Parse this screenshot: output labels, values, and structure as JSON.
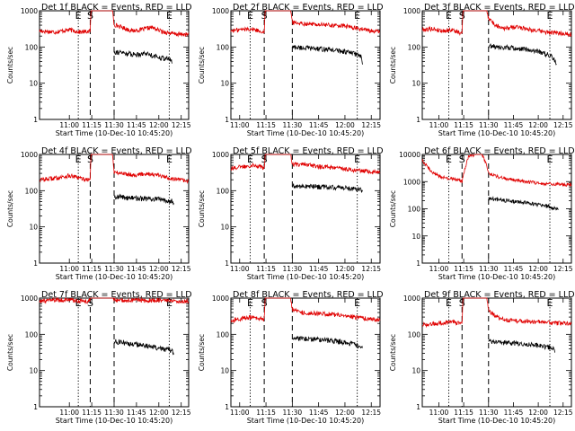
{
  "chart_data": {
    "type": "line",
    "ylabel": "Counts/sec",
    "xlabel": "Start Time (10-Dec-10 10:45:20)",
    "y_scale": "log",
    "ylim": [
      1,
      1000
    ],
    "ylim_alt": [
      1,
      10000
    ],
    "yticks": [
      "1",
      "10",
      "100",
      "1000"
    ],
    "yticks_alt": [
      "1",
      "10",
      "100",
      "1000",
      "10000"
    ],
    "xlim_minutes": [
      640,
      740
    ],
    "xticks": [
      {
        "min": 660,
        "label": "11:00"
      },
      {
        "min": 675,
        "label": "11:15"
      },
      {
        "min": 690,
        "label": "11:30"
      },
      {
        "min": 705,
        "label": "11:45"
      },
      {
        "min": 720,
        "label": "12:00"
      },
      {
        "min": 735,
        "label": "12:15"
      }
    ],
    "colors": {
      "events": "#000000",
      "lld": "#e00000"
    },
    "marker_labels": {
      "E": "E",
      "S": "S"
    },
    "panels": [
      {
        "title": "Det 1f BLACK = Events, RED = LLD",
        "xlim": [
          640,
          740
        ],
        "markers": {
          "dotted": [
            666,
            727
          ],
          "dashed": [
            674,
            690
          ]
        },
        "lld": [
          [
            640,
            280
          ],
          [
            650,
            260
          ],
          [
            660,
            300
          ],
          [
            667,
            260
          ],
          [
            674,
            270
          ],
          [
            674.5,
            1000
          ],
          [
            689,
            1000
          ],
          [
            690,
            420
          ],
          [
            696,
            340
          ],
          [
            702,
            280
          ],
          [
            708,
            300
          ],
          [
            715,
            350
          ],
          [
            722,
            270
          ],
          [
            730,
            230
          ],
          [
            740,
            220
          ]
        ],
        "events": [
          [
            690,
            75
          ],
          [
            697,
            68
          ],
          [
            704,
            62
          ],
          [
            711,
            68
          ],
          [
            718,
            55
          ],
          [
            725,
            48
          ],
          [
            728,
            45
          ],
          [
            729,
            36
          ]
        ]
      },
      {
        "title": "Det 2f BLACK = Events, RED = LLD",
        "xlim": [
          655,
          740
        ],
        "markers": {
          "dotted": [
            666,
            727
          ],
          "dashed": [
            674,
            690
          ]
        },
        "lld": [
          [
            655,
            280
          ],
          [
            660,
            300
          ],
          [
            666,
            320
          ],
          [
            673,
            270
          ],
          [
            674,
            250
          ],
          [
            674.5,
            1000
          ],
          [
            689,
            1000
          ],
          [
            690,
            480
          ],
          [
            696,
            450
          ],
          [
            704,
            420
          ],
          [
            712,
            400
          ],
          [
            720,
            380
          ],
          [
            728,
            320
          ],
          [
            735,
            280
          ],
          [
            740,
            260
          ]
        ],
        "events": [
          [
            690,
            100
          ],
          [
            696,
            95
          ],
          [
            704,
            90
          ],
          [
            712,
            85
          ],
          [
            720,
            75
          ],
          [
            726,
            65
          ],
          [
            729,
            55
          ],
          [
            730,
            35
          ]
        ]
      },
      {
        "title": "Det 3f BLACK = Events, RED = LLD",
        "xlim": [
          650,
          740
        ],
        "markers": {
          "dotted": [
            666,
            727
          ],
          "dashed": [
            674,
            690
          ]
        },
        "lld": [
          [
            650,
            300
          ],
          [
            656,
            320
          ],
          [
            662,
            280
          ],
          [
            668,
            300
          ],
          [
            673,
            240
          ],
          [
            674,
            230
          ],
          [
            674.5,
            1000
          ],
          [
            689,
            1000
          ],
          [
            690,
            650
          ],
          [
            694,
            400
          ],
          [
            700,
            330
          ],
          [
            708,
            360
          ],
          [
            716,
            300
          ],
          [
            724,
            260
          ],
          [
            732,
            240
          ],
          [
            740,
            230
          ]
        ],
        "events": [
          [
            690,
            110
          ],
          [
            696,
            100
          ],
          [
            704,
            95
          ],
          [
            712,
            88
          ],
          [
            720,
            75
          ],
          [
            727,
            60
          ],
          [
            730,
            45
          ],
          [
            731,
            35
          ]
        ]
      },
      {
        "title": "Det 4f BLACK = Events, RED = LLD",
        "xlim": [
          640,
          740
        ],
        "markers": {
          "dotted": [
            666,
            727
          ],
          "dashed": [
            674,
            690
          ]
        },
        "lld": [
          [
            640,
            200
          ],
          [
            650,
            220
          ],
          [
            660,
            260
          ],
          [
            667,
            220
          ],
          [
            674,
            200
          ],
          [
            674.5,
            1000
          ],
          [
            689,
            1000
          ],
          [
            690,
            320
          ],
          [
            696,
            300
          ],
          [
            704,
            270
          ],
          [
            712,
            300
          ],
          [
            720,
            260
          ],
          [
            728,
            220
          ],
          [
            734,
            200
          ],
          [
            740,
            180
          ]
        ],
        "events": [
          [
            690,
            70
          ],
          [
            696,
            66
          ],
          [
            704,
            62
          ],
          [
            712,
            60
          ],
          [
            720,
            58
          ],
          [
            726,
            55
          ],
          [
            729,
            52
          ],
          [
            730,
            45
          ]
        ]
      },
      {
        "title": "Det 5f BLACK = Events, RED = LLD",
        "xlim": [
          655,
          740
        ],
        "markers": {
          "dotted": [
            666,
            727
          ],
          "dashed": [
            674,
            690
          ]
        },
        "lld": [
          [
            655,
            420
          ],
          [
            662,
            460
          ],
          [
            668,
            520
          ],
          [
            673,
            440
          ],
          [
            674,
            420
          ],
          [
            674.5,
            1000
          ],
          [
            689,
            1000
          ],
          [
            690,
            520
          ],
          [
            696,
            560
          ],
          [
            704,
            470
          ],
          [
            712,
            440
          ],
          [
            720,
            400
          ],
          [
            728,
            360
          ],
          [
            735,
            330
          ],
          [
            740,
            320
          ]
        ],
        "events": [
          [
            690,
            130
          ],
          [
            696,
            135
          ],
          [
            704,
            130
          ],
          [
            712,
            125
          ],
          [
            720,
            120
          ],
          [
            726,
            115
          ],
          [
            729,
            110
          ],
          [
            730,
            95
          ]
        ]
      },
      {
        "title": "Det 6f BLACK = Events, RED = LLD",
        "xlim": [
          650,
          740
        ],
        "markers": {
          "dotted": [
            666,
            727
          ],
          "dashed": [
            674,
            690
          ]
        },
        "lld": [
          [
            650,
            6000
          ],
          [
            652,
            4500
          ],
          [
            655,
            2500
          ],
          [
            660,
            1600
          ],
          [
            666,
            1300
          ],
          [
            670,
            1250
          ],
          [
            674,
            1000
          ],
          [
            675,
            2000
          ],
          [
            678,
            9000
          ],
          [
            683,
            10000
          ],
          [
            686,
            10000
          ],
          [
            689,
            4000
          ],
          [
            690,
            2000
          ],
          [
            696,
            1500
          ],
          [
            704,
            1200
          ],
          [
            712,
            1000
          ],
          [
            720,
            900
          ],
          [
            728,
            820
          ],
          [
            734,
            790
          ],
          [
            740,
            780
          ]
        ],
        "events": [
          [
            690,
            240
          ],
          [
            696,
            220
          ],
          [
            704,
            190
          ],
          [
            712,
            170
          ],
          [
            720,
            145
          ],
          [
            726,
            125
          ],
          [
            730,
            105
          ],
          [
            732,
            95
          ]
        ]
      },
      {
        "title": "Det 7f BLACK = Events, RED = LLD",
        "xlim": [
          640,
          740
        ],
        "markers": {
          "dotted": [
            666,
            727
          ],
          "dashed": [
            674,
            690
          ]
        },
        "lld": [
          [
            640,
            800
          ],
          [
            650,
            880
          ],
          [
            660,
            900
          ],
          [
            667,
            820
          ],
          [
            673,
            840
          ],
          [
            674,
            900
          ],
          [
            674.5,
            1000
          ],
          [
            689,
            1000
          ],
          [
            690,
            900
          ],
          [
            696,
            860
          ],
          [
            704,
            900
          ],
          [
            712,
            850
          ],
          [
            720,
            880
          ],
          [
            728,
            820
          ],
          [
            734,
            800
          ],
          [
            740,
            820
          ]
        ],
        "events": [
          [
            690,
            65
          ],
          [
            696,
            58
          ],
          [
            704,
            52
          ],
          [
            712,
            48
          ],
          [
            720,
            42
          ],
          [
            726,
            38
          ],
          [
            729,
            35
          ],
          [
            730,
            25
          ]
        ]
      },
      {
        "title": "Det 8f BLACK = Events, RED = LLD",
        "xlim": [
          655,
          740
        ],
        "markers": {
          "dotted": [
            666,
            727
          ],
          "dashed": [
            674,
            690
          ]
        },
        "lld": [
          [
            655,
            240
          ],
          [
            662,
            280
          ],
          [
            668,
            300
          ],
          [
            673,
            260
          ],
          [
            674,
            240
          ],
          [
            674.5,
            1000
          ],
          [
            689,
            1000
          ],
          [
            690,
            480
          ],
          [
            696,
            400
          ],
          [
            704,
            380
          ],
          [
            712,
            360
          ],
          [
            720,
            330
          ],
          [
            728,
            290
          ],
          [
            735,
            260
          ],
          [
            740,
            250
          ]
        ],
        "events": [
          [
            690,
            80
          ],
          [
            696,
            76
          ],
          [
            704,
            72
          ],
          [
            712,
            68
          ],
          [
            720,
            60
          ],
          [
            726,
            52
          ],
          [
            729,
            45
          ],
          [
            730,
            40
          ]
        ]
      },
      {
        "title": "Det 9f BLACK = Events, RED = LLD",
        "xlim": [
          650,
          740
        ],
        "markers": {
          "dotted": [
            666,
            727
          ],
          "dashed": [
            674,
            690
          ]
        },
        "lld": [
          [
            650,
            180
          ],
          [
            656,
            200
          ],
          [
            662,
            210
          ],
          [
            668,
            220
          ],
          [
            673,
            200
          ],
          [
            674,
            190
          ],
          [
            674.5,
            1000
          ],
          [
            689,
            1000
          ],
          [
            690,
            450
          ],
          [
            696,
            280
          ],
          [
            704,
            240
          ],
          [
            712,
            230
          ],
          [
            720,
            220
          ],
          [
            728,
            210
          ],
          [
            735,
            200
          ],
          [
            740,
            210
          ]
        ],
        "events": [
          [
            690,
            65
          ],
          [
            696,
            60
          ],
          [
            704,
            57
          ],
          [
            712,
            55
          ],
          [
            720,
            50
          ],
          [
            726,
            45
          ],
          [
            729,
            42
          ],
          [
            730,
            35
          ]
        ]
      }
    ]
  }
}
